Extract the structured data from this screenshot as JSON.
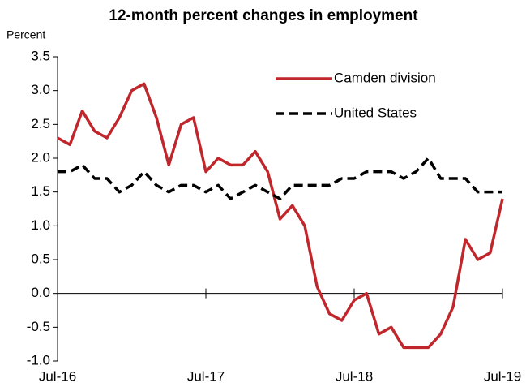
{
  "chart_data": {
    "type": "line",
    "title": "12-month percent changes in employment",
    "y_label": "Percent",
    "categories": [
      "Jul-16",
      null,
      null,
      null,
      null,
      null,
      null,
      null,
      null,
      null,
      null,
      null,
      "Jul-17",
      null,
      null,
      null,
      null,
      null,
      null,
      null,
      null,
      null,
      null,
      null,
      "Jul-18",
      null,
      null,
      null,
      null,
      null,
      null,
      null,
      null,
      null,
      null,
      null,
      "Jul-19"
    ],
    "series": [
      {
        "name": "Camden division",
        "color": "#c0272d",
        "dash": false,
        "values": [
          2.3,
          2.2,
          2.7,
          2.4,
          2.3,
          2.6,
          3.0,
          3.1,
          2.6,
          1.9,
          2.5,
          2.6,
          1.8,
          2.0,
          1.9,
          1.9,
          2.1,
          1.8,
          1.1,
          1.3,
          1.0,
          0.1,
          -0.3,
          -0.4,
          -0.1,
          0.0,
          -0.6,
          -0.5,
          -0.8,
          -0.8,
          -0.8,
          -0.6,
          -0.2,
          0.8,
          0.5,
          0.6,
          1.4
        ]
      },
      {
        "name": "United States",
        "color": "#000000",
        "dash": true,
        "values": [
          1.8,
          1.8,
          1.9,
          1.7,
          1.7,
          1.5,
          1.6,
          1.8,
          1.6,
          1.5,
          1.6,
          1.6,
          1.5,
          1.6,
          1.4,
          1.5,
          1.6,
          1.5,
          1.4,
          1.6,
          1.6,
          1.6,
          1.6,
          1.7,
          1.7,
          1.8,
          1.8,
          1.8,
          1.7,
          1.8,
          2.0,
          1.7,
          1.7,
          1.7,
          1.5,
          1.5,
          1.5
        ]
      }
    ],
    "ylim": [
      -1,
      3.5
    ],
    "yticks": [
      {
        "value": -1,
        "label": "-1.0"
      },
      -0.5,
      {
        "value": 0,
        "label": "0.0"
      },
      0.5,
      {
        "value": 1,
        "label": "1.0"
      },
      1.5,
      {
        "value": 2,
        "label": "2.0"
      },
      2.5,
      {
        "value": 3,
        "label": "3.0"
      },
      3.5
    ],
    "grid": false,
    "legend": "top-right"
  }
}
